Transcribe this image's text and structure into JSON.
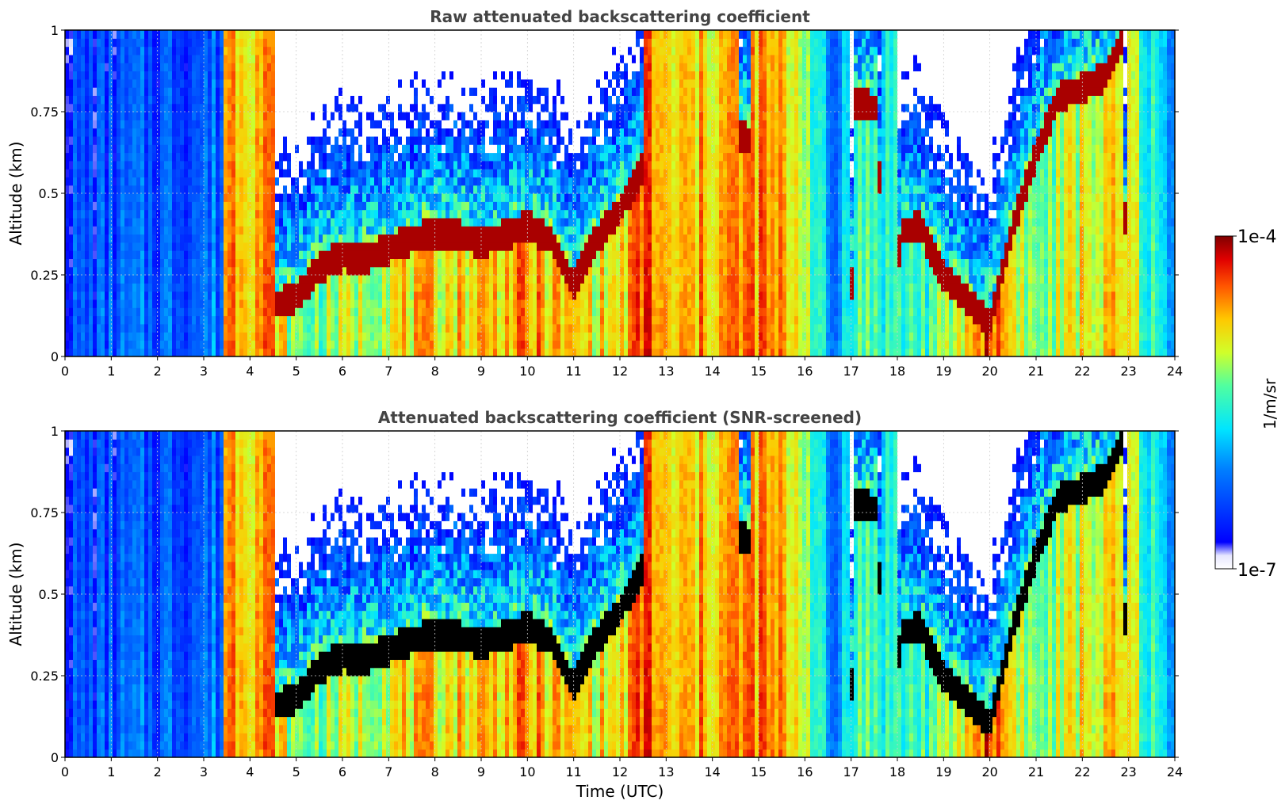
{
  "chart_data": [
    {
      "type": "heatmap",
      "title": "Raw attenuated backscattering coefficient",
      "xlabel": "",
      "ylabel": "Altitude (km)",
      "xlim": [
        0,
        24
      ],
      "ylim": [
        0,
        1
      ],
      "x_ticks": [
        0,
        1,
        2,
        3,
        4,
        5,
        6,
        7,
        8,
        9,
        10,
        11,
        12,
        13,
        14,
        15,
        16,
        17,
        18,
        19,
        20,
        21,
        22,
        23,
        24
      ],
      "y_ticks": [
        0,
        0.25,
        0.5,
        0.75,
        1
      ],
      "y_tick_labels": [
        "0",
        "0.25",
        "0.5",
        "0.75",
        "1"
      ],
      "grid": true,
      "screened": false
    },
    {
      "type": "heatmap",
      "title": "Attenuated backscattering coefficient (SNR-screened)",
      "xlabel": "Time (UTC)",
      "ylabel": "Altitude (km)",
      "xlim": [
        0,
        24
      ],
      "ylim": [
        0,
        1
      ],
      "x_ticks": [
        0,
        1,
        2,
        3,
        4,
        5,
        6,
        7,
        8,
        9,
        10,
        11,
        12,
        13,
        14,
        15,
        16,
        17,
        18,
        19,
        20,
        21,
        22,
        23,
        24
      ],
      "y_ticks": [
        0,
        0.25,
        0.5,
        0.75,
        1
      ],
      "y_tick_labels": [
        "0",
        "0.25",
        "0.5",
        "0.75",
        "1"
      ],
      "grid": true,
      "screened": true
    }
  ],
  "colorbar": {
    "label": "1/m/sr",
    "max_label": "1e-4",
    "min_label": "1e-7",
    "scale": "log",
    "colormap": "jet",
    "placement": "right"
  },
  "profile": {
    "cloud_base_km": [
      {
        "t": 0.0,
        "h": 0.0
      },
      {
        "t": 4.5,
        "h": 0.0
      },
      {
        "t": 4.55,
        "h": 0.16
      },
      {
        "t": 5.0,
        "h": 0.18
      },
      {
        "t": 5.5,
        "h": 0.27
      },
      {
        "t": 6.0,
        "h": 0.31
      },
      {
        "t": 6.5,
        "h": 0.3
      },
      {
        "t": 7.0,
        "h": 0.33
      },
      {
        "t": 7.5,
        "h": 0.36
      },
      {
        "t": 8.0,
        "h": 0.38
      },
      {
        "t": 8.5,
        "h": 0.37
      },
      {
        "t": 9.0,
        "h": 0.35
      },
      {
        "t": 9.5,
        "h": 0.37
      },
      {
        "t": 10.0,
        "h": 0.4
      },
      {
        "t": 10.5,
        "h": 0.36
      },
      {
        "t": 11.0,
        "h": 0.22
      },
      {
        "t": 11.5,
        "h": 0.36
      },
      {
        "t": 12.0,
        "h": 0.45
      },
      {
        "t": 12.5,
        "h": 0.58
      },
      {
        "t": 12.55,
        "h": 0.0
      },
      {
        "t": 14.55,
        "h": 0.0
      },
      {
        "t": 14.6,
        "h": 0.68
      },
      {
        "t": 14.8,
        "h": 0.66
      },
      {
        "t": 14.85,
        "h": 0.0
      },
      {
        "t": 17.0,
        "h": 0.0
      },
      {
        "t": 17.05,
        "h": 0.78
      },
      {
        "t": 17.6,
        "h": 0.76
      },
      {
        "t": 17.65,
        "h": 0.0
      },
      {
        "t": 18.0,
        "h": 0.0
      },
      {
        "t": 18.05,
        "h": 0.38
      },
      {
        "t": 18.5,
        "h": 0.4
      },
      {
        "t": 19.0,
        "h": 0.25
      },
      {
        "t": 19.5,
        "h": 0.17
      },
      {
        "t": 20.0,
        "h": 0.1
      },
      {
        "t": 20.5,
        "h": 0.4
      },
      {
        "t": 21.0,
        "h": 0.62
      },
      {
        "t": 21.5,
        "h": 0.8
      },
      {
        "t": 22.0,
        "h": 0.82
      },
      {
        "t": 22.5,
        "h": 0.86
      },
      {
        "t": 22.9,
        "h": 0.98
      },
      {
        "t": 22.95,
        "h": 0.0
      },
      {
        "t": 24.0,
        "h": 0.0
      }
    ],
    "background_level": [
      {
        "t": 0.0,
        "v": 0.2
      },
      {
        "t": 3.4,
        "v": 0.28
      },
      {
        "t": 3.45,
        "v": 0.84
      },
      {
        "t": 4.5,
        "v": 0.8
      },
      {
        "t": 5.0,
        "v": 0.55
      },
      {
        "t": 6.0,
        "v": 0.62
      },
      {
        "t": 7.0,
        "v": 0.7
      },
      {
        "t": 8.0,
        "v": 0.72
      },
      {
        "t": 9.0,
        "v": 0.75
      },
      {
        "t": 10.0,
        "v": 0.78
      },
      {
        "t": 11.0,
        "v": 0.72
      },
      {
        "t": 12.0,
        "v": 0.7
      },
      {
        "t": 12.6,
        "v": 0.9
      },
      {
        "t": 13.0,
        "v": 0.72
      },
      {
        "t": 14.0,
        "v": 0.78
      },
      {
        "t": 15.0,
        "v": 0.82
      },
      {
        "t": 16.0,
        "v": 0.7
      },
      {
        "t": 16.6,
        "v": 0.25
      },
      {
        "t": 17.0,
        "v": 0.55
      },
      {
        "t": 18.0,
        "v": 0.5
      },
      {
        "t": 19.0,
        "v": 0.55
      },
      {
        "t": 20.0,
        "v": 0.9
      },
      {
        "t": 21.0,
        "v": 0.55
      },
      {
        "t": 22.0,
        "v": 0.7
      },
      {
        "t": 23.0,
        "v": 0.7
      },
      {
        "t": 23.5,
        "v": 0.5
      },
      {
        "t": 24.0,
        "v": 0.3
      }
    ]
  }
}
